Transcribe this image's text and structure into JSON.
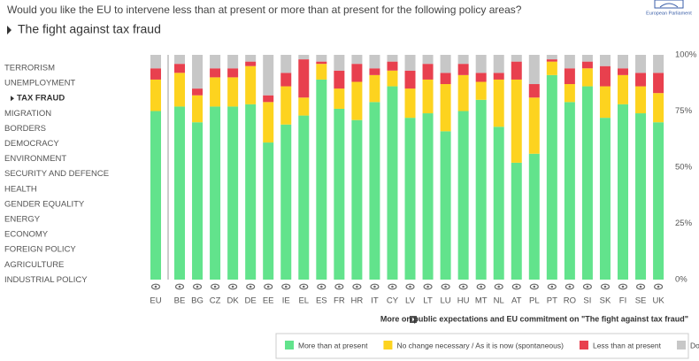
{
  "header": {
    "question": "Would you like the EU to intervene less than at present or more than at present for the following policy areas?",
    "logo": "European Parliament"
  },
  "menu": [
    "TERRORISM",
    "UNEMPLOYMENT",
    "TAX FRAUD",
    "MIGRATION",
    "BORDERS",
    "DEMOCRACY",
    "ENVIRONMENT",
    "SECURITY AND DEFENCE",
    "HEALTH",
    "GENDER EQUALITY",
    "ENERGY",
    "ECONOMY",
    "FOREIGN POLICY",
    "AGRICULTURE",
    "INDUSTRIAL POLICY"
  ],
  "more_link": "More on public expectations and EU commitment on \"The fight against tax fraud\"",
  "chart_data": {
    "type": "stacked-bar",
    "title": "The fight against tax fraud",
    "categories": [
      "EU",
      "BE",
      "BG",
      "CZ",
      "DK",
      "DE",
      "EE",
      "IE",
      "EL",
      "ES",
      "FR",
      "HR",
      "IT",
      "CY",
      "LV",
      "LT",
      "LU",
      "HU",
      "MT",
      "NL",
      "AT",
      "PL",
      "PT",
      "RO",
      "SI",
      "SK",
      "FI",
      "SE",
      "UK"
    ],
    "series": [
      {
        "name": "More than at present",
        "color": "#62e38c",
        "values": [
          75,
          77,
          70,
          77,
          77,
          78,
          61,
          69,
          73,
          89,
          76,
          71,
          79,
          86,
          72,
          74,
          66,
          75,
          80,
          68,
          52,
          56,
          91,
          79,
          86,
          72,
          78,
          74,
          70
        ]
      },
      {
        "name": "No change necessary / As it is now (spontaneous)",
        "color": "#fdd31f",
        "values": [
          14,
          15,
          12,
          13,
          13,
          17,
          18,
          17,
          8,
          7,
          9,
          17,
          12,
          7,
          13,
          15,
          21,
          16,
          8,
          21,
          37,
          25,
          6,
          8,
          8,
          14,
          13,
          12,
          13
        ]
      },
      {
        "name": "Less than at present",
        "color": "#e8404e",
        "values": [
          5,
          4,
          3,
          4,
          4,
          2,
          3,
          6,
          17,
          1,
          8,
          8,
          3,
          4,
          8,
          7,
          5,
          5,
          4,
          3,
          8,
          6,
          1,
          7,
          3,
          9,
          3,
          6,
          9
        ]
      },
      {
        "name": "Don't know",
        "color": "#c7c7c7",
        "values": [
          6,
          4,
          15,
          6,
          6,
          3,
          18,
          8,
          2,
          3,
          7,
          4,
          6,
          3,
          7,
          4,
          8,
          4,
          8,
          8,
          3,
          13,
          2,
          6,
          3,
          5,
          6,
          8,
          8
        ]
      }
    ],
    "ylim": [
      0,
      100
    ],
    "yticks": [
      {
        "value": 0,
        "label": "0%"
      },
      {
        "value": 25,
        "label": "25%"
      },
      {
        "value": 50,
        "label": "50%"
      },
      {
        "value": 75,
        "label": "75%"
      },
      {
        "value": 100,
        "label": "100%"
      }
    ]
  }
}
